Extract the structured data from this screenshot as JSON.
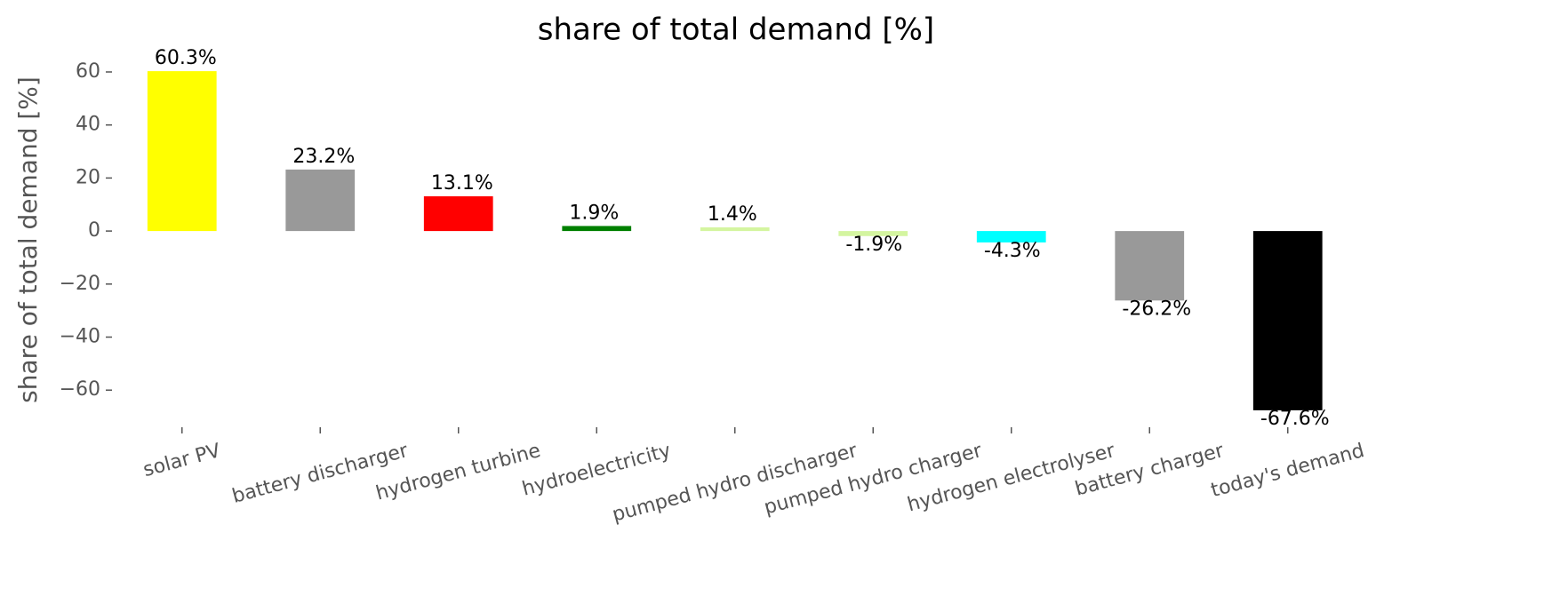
{
  "chart_data": {
    "type": "bar",
    "title": "share of total demand [%]",
    "y_label": "share of total demand [%]",
    "categories": [
      "solar PV",
      "battery discharger",
      "hydrogen turbine",
      "hydroelectricity",
      "pumped hydro discharger",
      "pumped hydro charger",
      "hydrogen electrolyser",
      "battery charger",
      "today's demand"
    ],
    "values": [
      60.3,
      23.2,
      13.1,
      1.9,
      1.4,
      -1.9,
      -4.3,
      -26.2,
      -67.6
    ],
    "value_labels": [
      "60.3%",
      "23.2%",
      "13.1%",
      "1.9%",
      "1.4%",
      "-1.9%",
      "-4.3%",
      "-26.2%",
      "-67.6%"
    ],
    "colors": [
      "#ffff00",
      "#999999",
      "#ff0000",
      "#008000",
      "#d4f5a0",
      "#d4f5a0",
      "#00ffff",
      "#999999",
      "#000000"
    ],
    "ylim": [
      -74,
      66.7
    ],
    "yticks": [
      {
        "value": -60,
        "label": "−60"
      },
      {
        "value": -40,
        "label": "−40"
      },
      {
        "value": -20,
        "label": "−20"
      },
      0,
      20,
      40,
      60
    ],
    "grid": false
  }
}
